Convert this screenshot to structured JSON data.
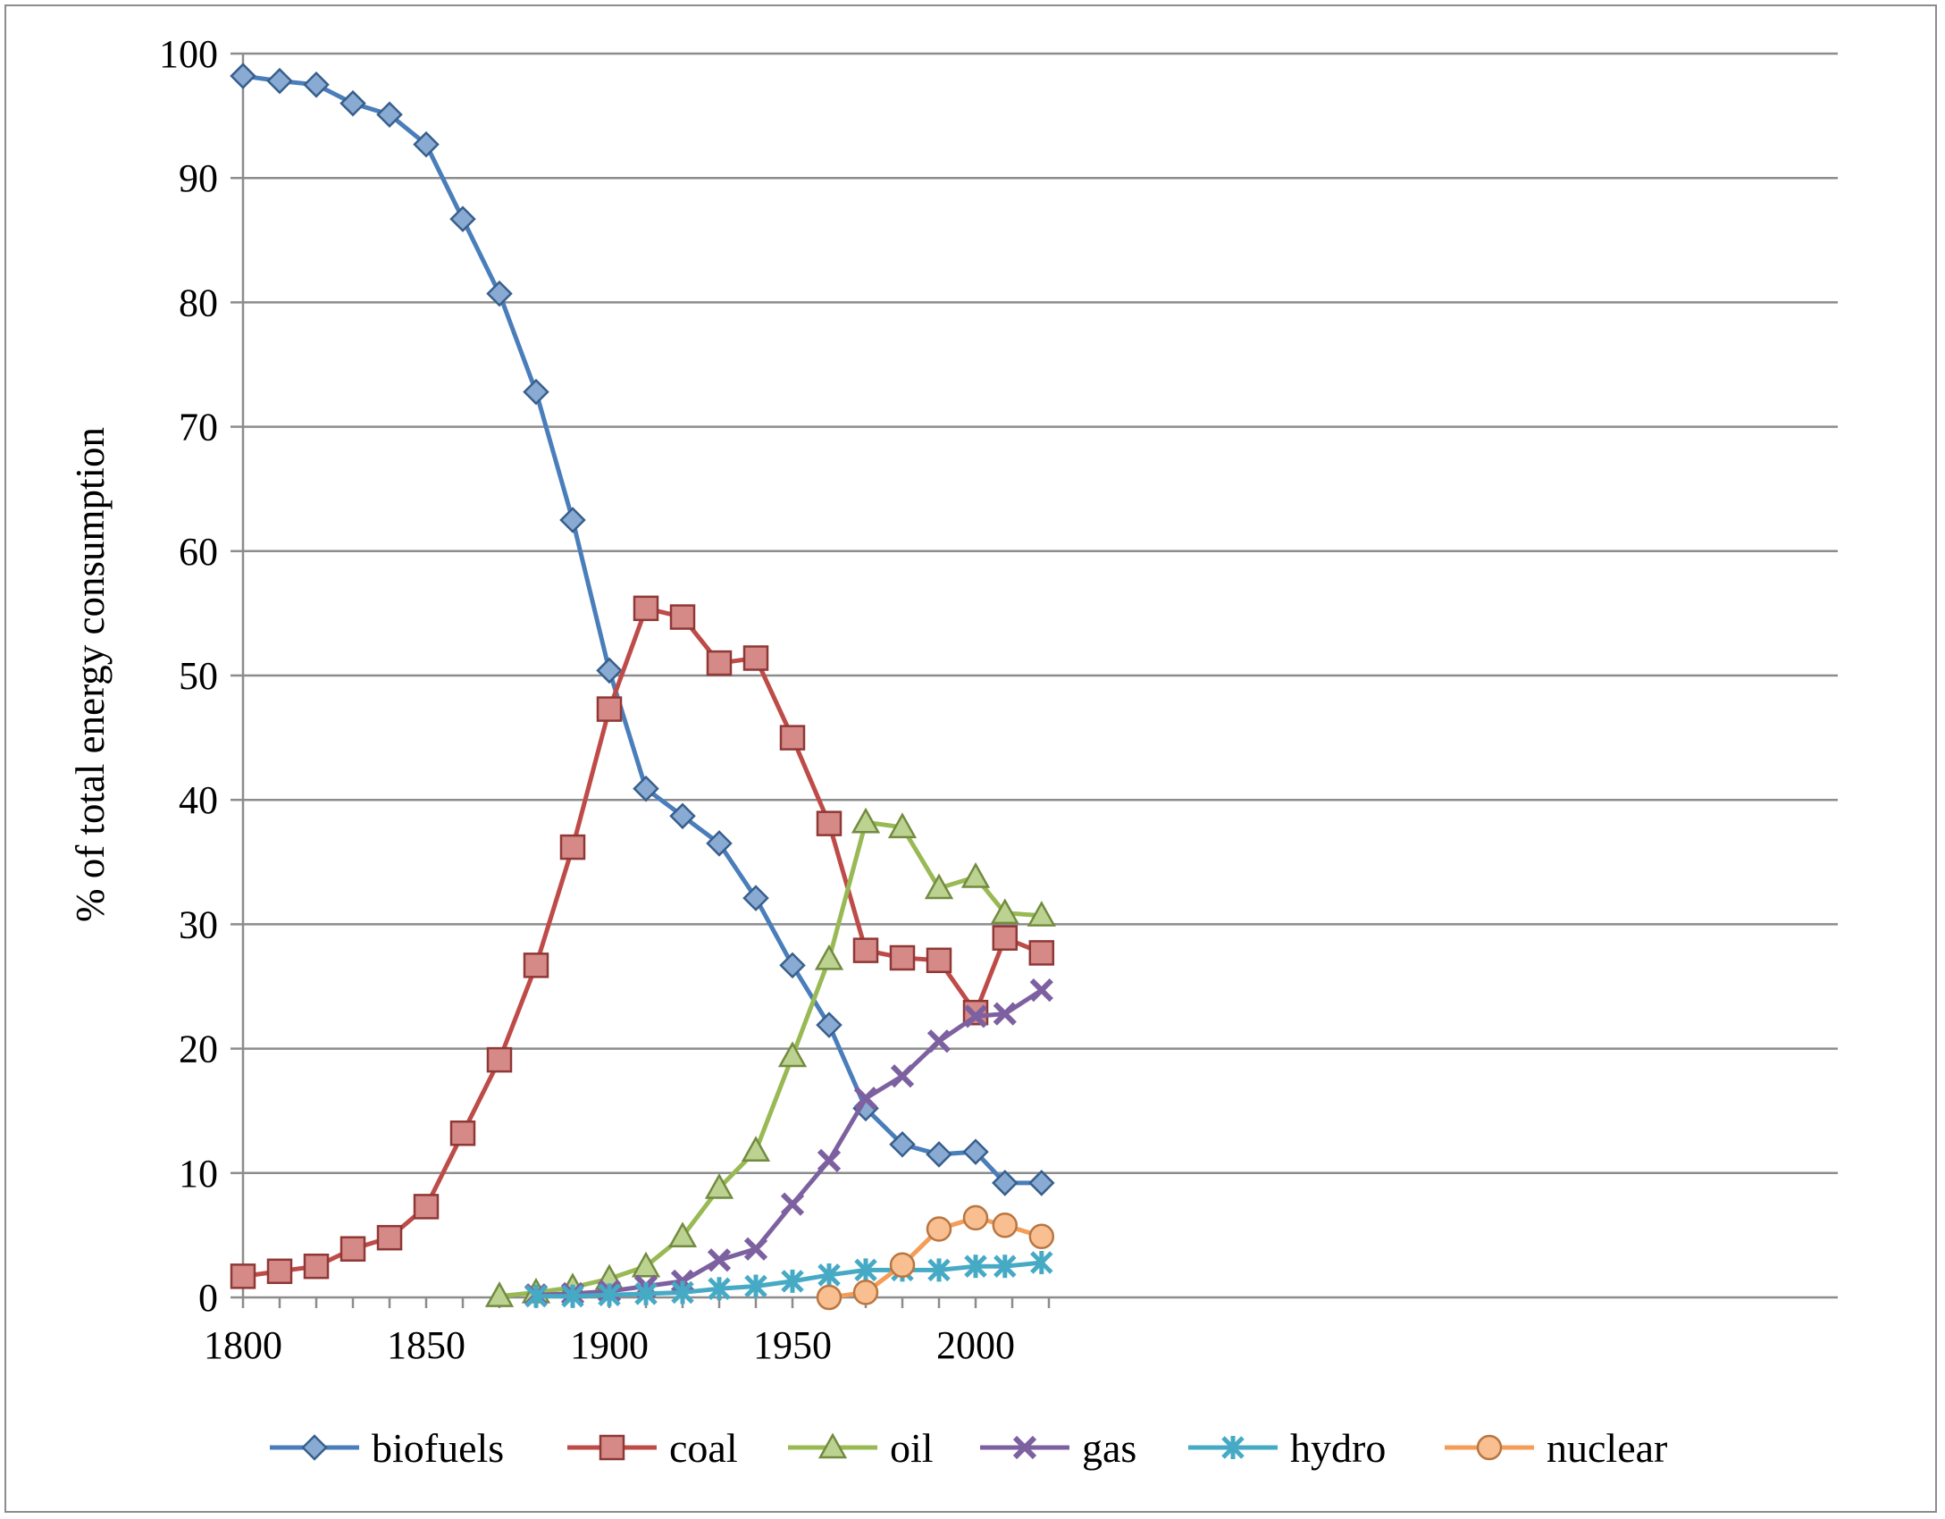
{
  "chart_data": {
    "type": "line",
    "title": "",
    "xlabel": "",
    "ylabel": "% of total energy consumption",
    "xlim": [
      1800,
      2020
    ],
    "ylim": [
      0,
      100
    ],
    "x_ticks": [
      1800,
      1850,
      1900,
      1950,
      2000
    ],
    "y_ticks": [
      0,
      10,
      20,
      30,
      40,
      50,
      60,
      70,
      80,
      90,
      100
    ],
    "grid": "horizontal",
    "legend_position": "bottom",
    "series": [
      {
        "name": "biofuels",
        "color": "#4a7ebb",
        "marker": "diamond",
        "x": [
          1800,
          1810,
          1820,
          1830,
          1840,
          1850,
          1860,
          1870,
          1880,
          1890,
          1900,
          1910,
          1920,
          1930,
          1940,
          1950,
          1960,
          1970,
          1980,
          1990,
          2000,
          2008,
          2018
        ],
        "y": [
          98.2,
          97.8,
          97.5,
          96.0,
          95.1,
          92.7,
          86.7,
          80.7,
          72.8,
          62.5,
          50.4,
          40.9,
          38.7,
          36.5,
          32.1,
          26.7,
          21.9,
          15.2,
          12.3,
          11.5,
          11.7,
          9.2,
          9.2
        ]
      },
      {
        "name": "coal",
        "color": "#be4b48",
        "marker": "square",
        "x": [
          1800,
          1810,
          1820,
          1830,
          1840,
          1850,
          1860,
          1870,
          1880,
          1890,
          1900,
          1910,
          1920,
          1930,
          1940,
          1950,
          1960,
          1970,
          1980,
          1990,
          2000,
          2008,
          2018
        ],
        "y": [
          1.7,
          2.1,
          2.5,
          3.9,
          4.8,
          7.3,
          13.2,
          19.1,
          26.7,
          36.2,
          47.3,
          55.4,
          54.7,
          51.0,
          51.4,
          45.0,
          38.1,
          27.9,
          27.3,
          27.1,
          22.9,
          28.9,
          27.7
        ]
      },
      {
        "name": "oil",
        "color": "#98b954",
        "marker": "triangle",
        "x": [
          1870,
          1880,
          1890,
          1900,
          1910,
          1920,
          1930,
          1940,
          1950,
          1960,
          1970,
          1980,
          1990,
          2000,
          2008,
          2018
        ],
        "y": [
          0.1,
          0.4,
          0.8,
          1.5,
          2.5,
          4.9,
          8.8,
          11.8,
          19.4,
          27.2,
          38.2,
          37.8,
          32.9,
          33.8,
          30.9,
          30.7
        ]
      },
      {
        "name": "gas",
        "color": "#7d60a0",
        "marker": "x",
        "x": [
          1880,
          1890,
          1900,
          1910,
          1920,
          1930,
          1940,
          1950,
          1960,
          1970,
          1980,
          1990,
          2000,
          2008,
          2018
        ],
        "y": [
          0.2,
          0.3,
          0.5,
          0.9,
          1.3,
          3.0,
          3.9,
          7.5,
          11.0,
          16.0,
          17.8,
          20.6,
          22.6,
          22.8,
          24.7
        ]
      },
      {
        "name": "hydro",
        "color": "#46aac5",
        "marker": "asterisk",
        "x": [
          1880,
          1890,
          1900,
          1910,
          1920,
          1930,
          1940,
          1950,
          1960,
          1970,
          1980,
          1990,
          2000,
          2008,
          2018
        ],
        "y": [
          0.1,
          0.1,
          0.2,
          0.3,
          0.4,
          0.7,
          0.9,
          1.3,
          1.8,
          2.2,
          2.2,
          2.2,
          2.5,
          2.5,
          2.8
        ]
      },
      {
        "name": "nuclear",
        "color": "#f59d56",
        "marker": "circle",
        "x": [
          1960,
          1970,
          1980,
          1990,
          2000,
          2008,
          2018
        ],
        "y": [
          0.0,
          0.4,
          2.6,
          5.5,
          6.4,
          5.8,
          4.9
        ]
      }
    ]
  }
}
